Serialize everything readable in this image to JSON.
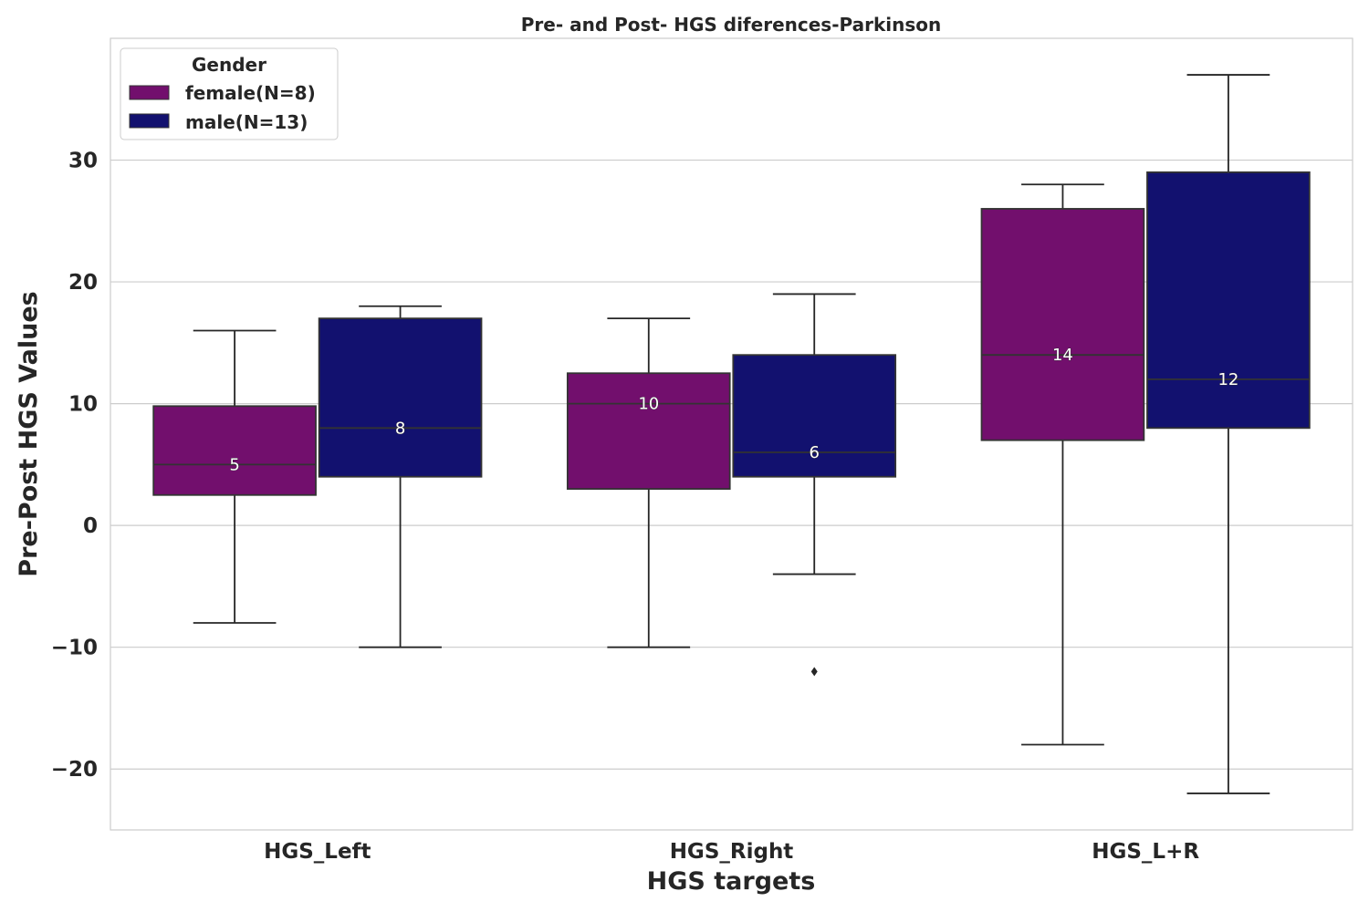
{
  "chart_data": {
    "type": "box",
    "title": "Pre- and Post- HGS diferences-Parkinson",
    "xlabel": "HGS targets",
    "ylabel": "Pre-Post HGS Values",
    "categories": [
      "HGS_Left",
      "HGS_Right",
      "HGS_L+R"
    ],
    "ylim": [
      -25,
      40
    ],
    "yticks": [
      -20,
      -10,
      0,
      10,
      20,
      30
    ],
    "ytick_labels": [
      "−20",
      "−10",
      "0",
      "10",
      "20",
      "30"
    ],
    "grid": true,
    "legend": {
      "title": "Gender",
      "position": "top-left"
    },
    "series": [
      {
        "name": "female(N=8)",
        "color": "#720f6d",
        "boxes": [
          {
            "whisker_low": -8,
            "q1": 2.5,
            "median": 5,
            "q3": 9.8,
            "whisker_high": 16,
            "median_label": "5",
            "outliers": []
          },
          {
            "whisker_low": -10,
            "q1": 3,
            "median": 10,
            "q3": 12.5,
            "whisker_high": 17,
            "median_label": "10",
            "outliers": []
          },
          {
            "whisker_low": -18,
            "q1": 7,
            "median": 14,
            "q3": 26,
            "whisker_high": 28,
            "median_label": "14",
            "outliers": []
          }
        ]
      },
      {
        "name": "male(N=13)",
        "color": "#12116f",
        "boxes": [
          {
            "whisker_low": -10,
            "q1": 4,
            "median": 8,
            "q3": 17,
            "whisker_high": 18,
            "median_label": "8",
            "outliers": []
          },
          {
            "whisker_low": -4,
            "q1": 4,
            "median": 6,
            "q3": 14,
            "whisker_high": 19,
            "median_label": "6",
            "outliers": [
              -12
            ]
          },
          {
            "whisker_low": -22,
            "q1": 8,
            "median": 12,
            "q3": 29,
            "whisker_high": 37,
            "median_label": "12",
            "outliers": []
          }
        ]
      }
    ]
  }
}
